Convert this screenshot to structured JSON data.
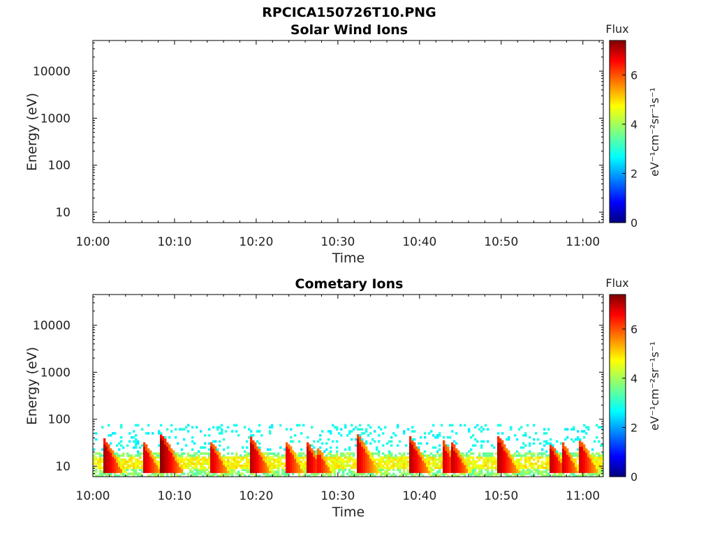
{
  "figure_title": "RPCICA150726T10.PNG",
  "colorbar": {
    "title": "Flux",
    "label": "eV⁻¹cm⁻²sr⁻¹s⁻¹",
    "range": [
      0,
      7.4
    ],
    "ticks": [
      "0",
      "2",
      "4",
      "6"
    ],
    "colormap": "jet"
  },
  "chart_data": [
    {
      "type": "heatmap",
      "title": "Solar Wind Ions",
      "xlabel": "Time",
      "ylabel": "Energy (eV)",
      "x_ticks": [
        "10:00",
        "10:10",
        "10:20",
        "10:30",
        "10:40",
        "10:50",
        "11:00"
      ],
      "y_ticks": [
        "10",
        "100",
        "1000",
        "10000"
      ],
      "y_scale": "log",
      "ylim": [
        6,
        45000
      ],
      "xlim_minutes": [
        0,
        62.5
      ],
      "bursts": []
    },
    {
      "type": "heatmap",
      "title": "Cometary Ions",
      "xlabel": "Time",
      "ylabel": "Energy (eV)",
      "x_ticks": [
        "10:00",
        "10:10",
        "10:20",
        "10:30",
        "10:40",
        "10:50",
        "11:00"
      ],
      "y_ticks": [
        "10",
        "100",
        "1000",
        "10000"
      ],
      "y_scale": "log",
      "ylim": [
        6,
        45000
      ],
      "xlim_minutes": [
        0,
        62.5
      ],
      "background": {
        "noise_energy_max_eV": 80,
        "green_band_eV": [
          6,
          20
        ],
        "yellow_band_eV": [
          9,
          16
        ]
      },
      "bursts": [
        {
          "minute": 1.3,
          "peak_energy_eV": 35,
          "peak_flux": 7.1
        },
        {
          "minute": 6.2,
          "peak_energy_eV": 30,
          "peak_flux": 6.8
        },
        {
          "minute": 8.3,
          "peak_energy_eV": 45,
          "peak_flux": 7.3
        },
        {
          "minute": 14.5,
          "peak_energy_eV": 30,
          "peak_flux": 6.7
        },
        {
          "minute": 19.3,
          "peak_energy_eV": 38,
          "peak_flux": 7.0
        },
        {
          "minute": 23.7,
          "peak_energy_eV": 30,
          "peak_flux": 6.6
        },
        {
          "minute": 26.2,
          "peak_energy_eV": 30,
          "peak_flux": 6.9
        },
        {
          "minute": 27.6,
          "peak_energy_eV": 22,
          "peak_flux": 6.4
        },
        {
          "minute": 32.3,
          "peak_energy_eV": 45,
          "peak_flux": 6.8
        },
        {
          "minute": 38.8,
          "peak_energy_eV": 38,
          "peak_flux": 7.0
        },
        {
          "minute": 42.8,
          "peak_energy_eV": 32,
          "peak_flux": 6.8
        },
        {
          "minute": 43.9,
          "peak_energy_eV": 30,
          "peak_flux": 6.9
        },
        {
          "minute": 49.6,
          "peak_energy_eV": 40,
          "peak_flux": 7.0
        },
        {
          "minute": 56.0,
          "peak_energy_eV": 28,
          "peak_flux": 6.9
        },
        {
          "minute": 57.4,
          "peak_energy_eV": 30,
          "peak_flux": 6.8
        },
        {
          "minute": 59.7,
          "peak_energy_eV": 32,
          "peak_flux": 6.7
        }
      ]
    }
  ]
}
